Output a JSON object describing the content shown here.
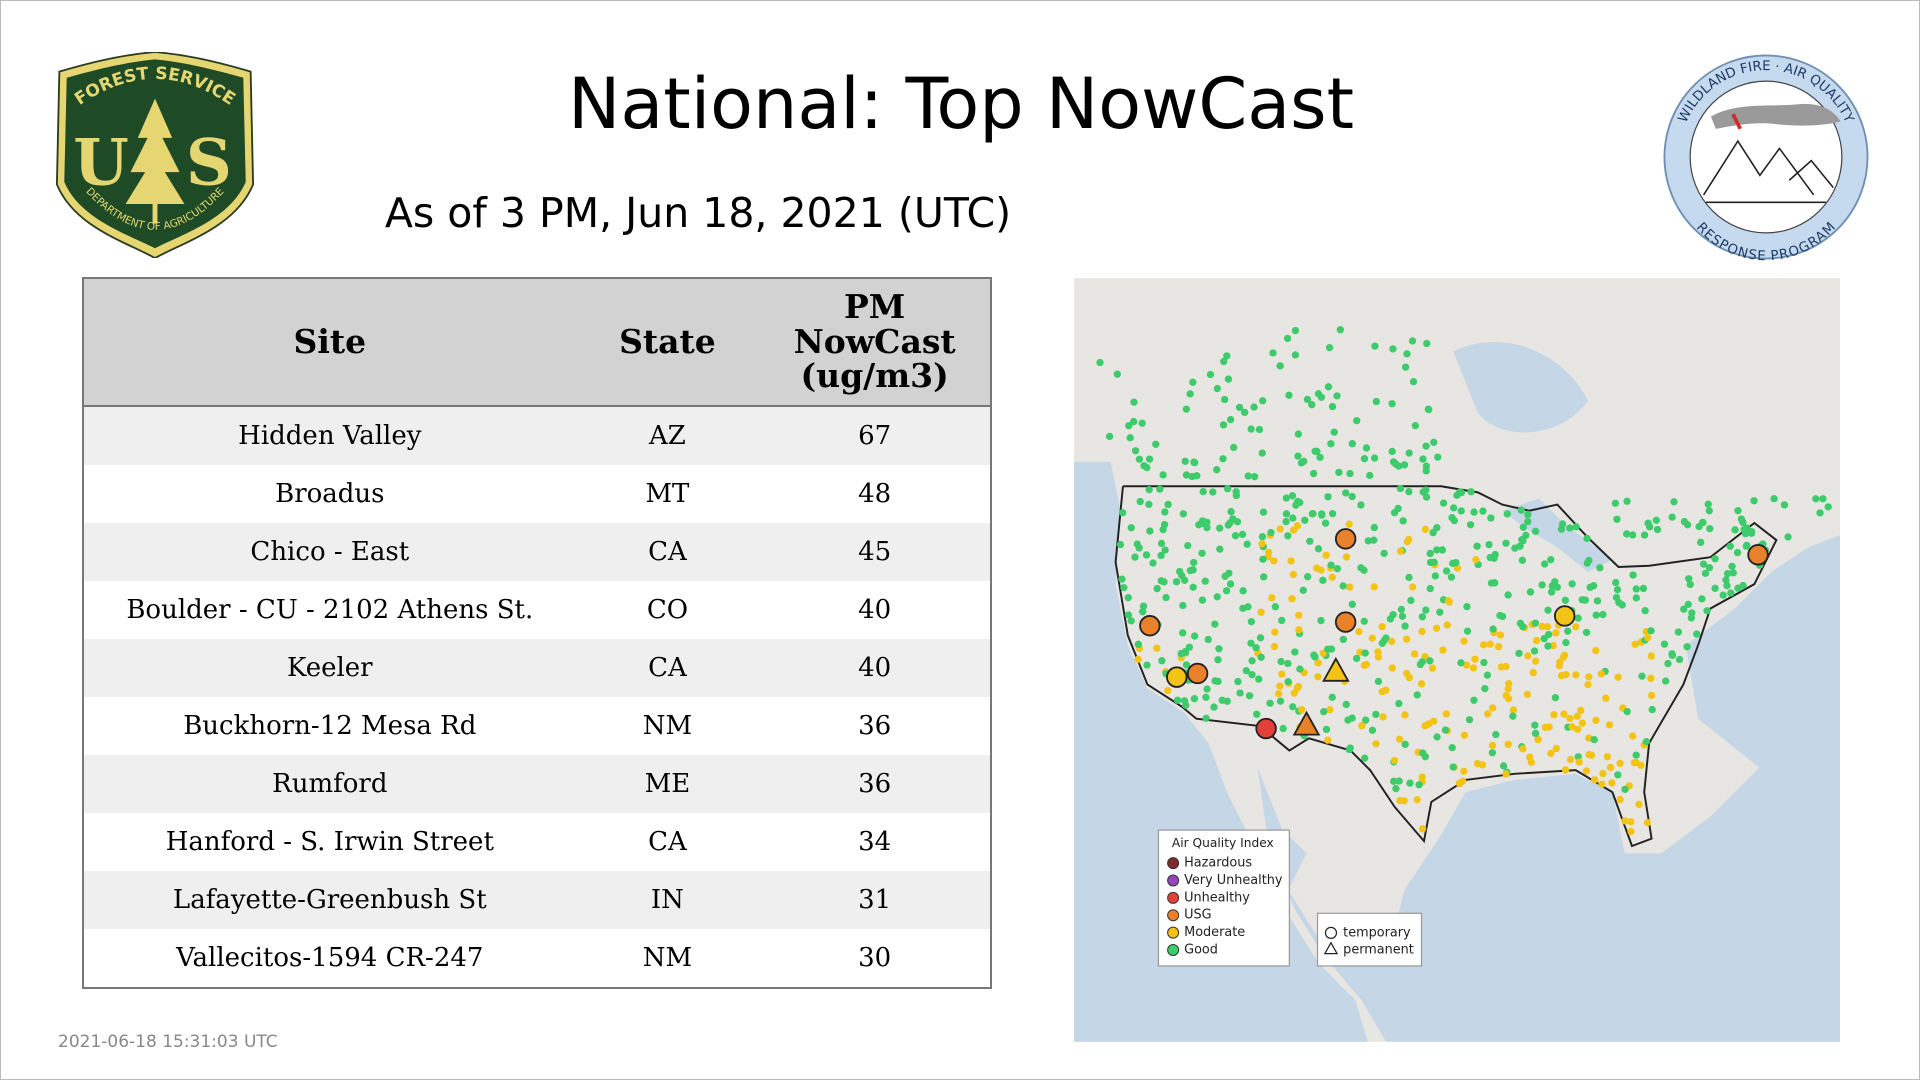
{
  "header": {
    "title": "National: Top NowCast",
    "subtitle": "As of  3 PM, Jun 18, 2021 (UTC)"
  },
  "logos": {
    "left": {
      "top": "FOREST SERVICE",
      "bottom": "DEPARTMENT OF AGRICULTURE",
      "letter_left": "U",
      "letter_right": "S"
    },
    "right": {
      "top": "WILDLAND FIRE · AIR QUALITY",
      "bottom": "RESPONSE PROGRAM"
    }
  },
  "table": {
    "columns": [
      "Site",
      "State",
      "PM\nNowCast\n(ug/m3)"
    ],
    "rows": [
      [
        "Hidden Valley",
        "AZ",
        67
      ],
      [
        "Broadus",
        "MT",
        48
      ],
      [
        "Chico - East",
        "CA",
        45
      ],
      [
        "Boulder - CU - 2102 Athens St.",
        "CO",
        40
      ],
      [
        "Keeler",
        "CA",
        40
      ],
      [
        "Buckhorn-12 Mesa Rd",
        "NM",
        36
      ],
      [
        "Rumford",
        "ME",
        36
      ],
      [
        "Hanford - S. Irwin Street",
        "CA",
        34
      ],
      [
        "Lafayette-Greenbush St",
        "IN",
        31
      ],
      [
        "Vallecitos-1594 CR-247",
        "NM",
        30
      ]
    ]
  },
  "map": {
    "legend": {
      "title": "Air Quality Index",
      "items": [
        {
          "label": "Hazardous",
          "color": "#7f2b2b"
        },
        {
          "label": "Very Unhealthy",
          "color": "#9446b8"
        },
        {
          "label": "Unhealthy",
          "color": "#e3403a"
        },
        {
          "label": "USG",
          "color": "#e9812b"
        },
        {
          "label": "Moderate",
          "color": "#f3c316"
        },
        {
          "label": "Good",
          "color": "#3dcb6c"
        }
      ]
    },
    "shapes": {
      "items": [
        "temporary",
        "permanent"
      ]
    }
  },
  "footer": {
    "timestamp": "2021-06-18 15:31:03 UTC"
  }
}
